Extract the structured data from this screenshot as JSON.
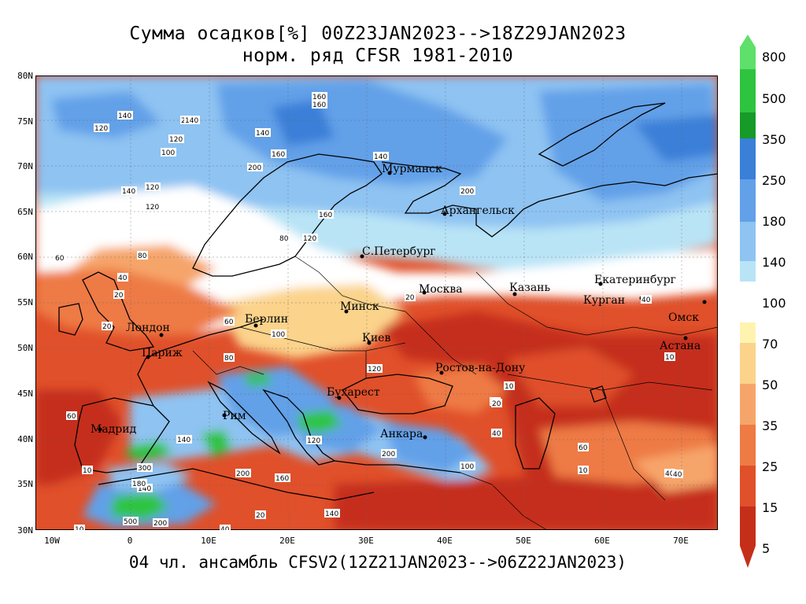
{
  "title": {
    "line1": "Сумма осадков[%] 00Z23JAN2023-->18Z29JAN2023",
    "line2": "норм. ряд CFSR 1981-2010"
  },
  "footer": "04 чл. ансамбль CFSV2(12Z21JAN2023-->06Z22JAN2023)",
  "lat_labels": [
    "80N",
    "75N",
    "70N",
    "65N",
    "60N",
    "55N",
    "50N",
    "45N",
    "40N",
    "35N",
    "30N"
  ],
  "lon_labels": [
    "10W",
    "0",
    "10E",
    "20E",
    "30E",
    "40E",
    "50E",
    "60E",
    "70E"
  ],
  "colorbar": {
    "levels": [
      "800",
      "500",
      "350",
      "250",
      "180",
      "140",
      "100",
      "70",
      "50",
      "35",
      "25",
      "15",
      "5"
    ],
    "colors": {
      "c800": "#5ee06a",
      "c500": "#2ec43f",
      "c350": "#169a28",
      "c250": "#3a7fd8",
      "c180": "#62a0e8",
      "c140": "#8ec3f2",
      "c120": "#b9e4f6",
      "c100": "#ffffff",
      "c70": "#fff3b0",
      "c50": "#fbd38b",
      "c35": "#f6a56a",
      "c25": "#ee7a44",
      "c15": "#e0502a",
      "c5": "#c52f1a"
    }
  },
  "cities": [
    {
      "name": "Мурманск"
    },
    {
      "name": "Архангельск"
    },
    {
      "name": "С.Петербург"
    },
    {
      "name": "Москва"
    },
    {
      "name": "Казань"
    },
    {
      "name": "Екатеринбург"
    },
    {
      "name": "Курган"
    },
    {
      "name": "Омск"
    },
    {
      "name": "Астана"
    },
    {
      "name": "Минск"
    },
    {
      "name": "Берлин"
    },
    {
      "name": "Лондон"
    },
    {
      "name": "Париж"
    },
    {
      "name": "Киев"
    },
    {
      "name": "Ростов-на-Дону"
    },
    {
      "name": "Бухарест"
    },
    {
      "name": "Рим"
    },
    {
      "name": "Мадрид"
    },
    {
      "name": "Анкара"
    }
  ],
  "contour_labels": [
    "160",
    "160",
    "140",
    "200",
    "120",
    "140",
    "140",
    "120",
    "100",
    "160",
    "200",
    "140",
    "120",
    "140",
    "120",
    "80",
    "120",
    "160",
    "200",
    "60",
    "80",
    "40",
    "20",
    "60",
    "100",
    "20",
    "40",
    "80",
    "120",
    "20",
    "10",
    "20",
    "10",
    "40",
    "60",
    "120",
    "140",
    "160",
    "200",
    "500",
    "300",
    "140",
    "200",
    "180",
    "10",
    "40",
    "20",
    "10",
    "10",
    "40",
    "20",
    "40",
    "60",
    "140",
    "100",
    "200"
  ]
}
